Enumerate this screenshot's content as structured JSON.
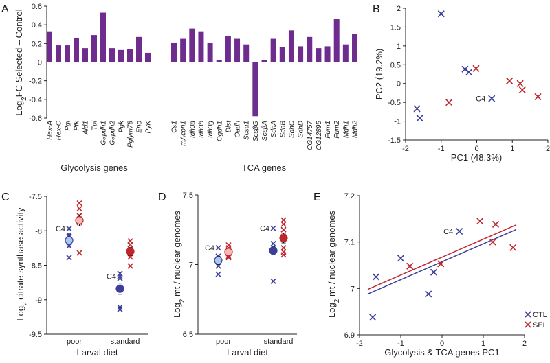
{
  "colors": {
    "bar": "#6f2c8f",
    "ctl": "#3b3f9a",
    "sel": "#c0272d",
    "ctl_light": "#a9c9ec",
    "sel_light": "#f6b9b9",
    "axis": "#222222"
  },
  "chart_data": [
    {
      "id": "A",
      "type": "bar",
      "letter": "A",
      "ylabel": {
        "pre": "Log",
        "sub": "2",
        "post": "FC Selected – Control"
      },
      "ylim": [
        -0.6,
        0.6
      ],
      "yticks": [
        -0.6,
        -0.4,
        -0.2,
        0,
        0.2,
        0.4,
        0.6
      ],
      "groups": [
        {
          "label": "Glycolysis genes",
          "categories": [
            "Hex-A",
            "Hex-C",
            "Pgi",
            "Pfk",
            "Ald1",
            "Tpi",
            "Gapdh1",
            "Gapdh2",
            "Pgk",
            "Pglym78",
            "Eno",
            "PyK"
          ],
          "values": [
            0.33,
            0.18,
            0.18,
            0.26,
            0.15,
            0.29,
            0.53,
            0.15,
            0.13,
            0.14,
            0.27,
            0.1
          ]
        },
        {
          "label": "TCA genes",
          "categories": [
            "Cs1",
            "mAcon1",
            "Idh3a",
            "Idh3b",
            "Idh3g",
            "Ogdh1",
            "Dlst",
            "Oadh",
            "Scsα1",
            "ScsβG",
            "ScsβA",
            "SdhA",
            "SdhB",
            "SdhC",
            "SdhD",
            "CG14757",
            "CG12895",
            "Fum1",
            "Fum2",
            "Mdh1",
            "Mdh2"
          ],
          "values": [
            0.21,
            0.25,
            0.36,
            0.33,
            0.21,
            0.02,
            0.28,
            0.25,
            0.19,
            -0.58,
            0.02,
            0.25,
            0.16,
            0.34,
            0.17,
            0.27,
            0.15,
            0.17,
            0.46,
            0.19,
            0.3
          ]
        }
      ]
    },
    {
      "id": "B",
      "type": "scatter",
      "letter": "B",
      "xlabel": "PC1 (48.3%)",
      "ylabel": "PC2 (19.2%)",
      "xlim": [
        -2,
        2
      ],
      "ylim": [
        -1.5,
        2
      ],
      "xticks": [
        -2,
        -1,
        0,
        1,
        2
      ],
      "yticks": [
        -1.5,
        -1,
        -0.5,
        0,
        0.5,
        1,
        1.5,
        2
      ],
      "series": [
        {
          "name": "CTL",
          "points": [
            [
              -1.0,
              1.85
            ],
            [
              -0.33,
              0.38
            ],
            [
              -0.22,
              0.3
            ],
            [
              0.42,
              -0.4
            ],
            [
              -1.68,
              -0.67
            ],
            [
              -1.6,
              -0.92
            ]
          ]
        },
        {
          "name": "SEL",
          "points": [
            [
              -0.02,
              0.4
            ],
            [
              -0.78,
              -0.5
            ],
            [
              0.92,
              0.07
            ],
            [
              1.22,
              0.0
            ],
            [
              1.28,
              -0.17
            ],
            [
              1.72,
              -0.35
            ]
          ]
        }
      ],
      "annotations": [
        {
          "text": "C4",
          "x": 0.42,
          "y": -0.4
        }
      ]
    },
    {
      "id": "C",
      "type": "scatter",
      "letter": "C",
      "xlabel": "Larval diet",
      "ylabel": {
        "pre": "Log",
        "sub": "2",
        "post": " citrate synthase activity"
      },
      "categories": [
        "poor",
        "standard"
      ],
      "ylim": [
        -9.5,
        -7.5
      ],
      "yticks": [
        -9.5,
        -9,
        -8.5,
        -8,
        -7.5
      ],
      "series": [
        {
          "name": "CTL",
          "values": [
            [
              -7.97,
              -8.06,
              -8.08,
              -8.13,
              -8.17,
              -8.22,
              -8.39
            ],
            [
              -8.62,
              -8.66,
              -8.69,
              -9.11,
              -9.14
            ]
          ],
          "means": [
            -8.14,
            -8.84
          ],
          "se": [
            0.04,
            0.08
          ]
        },
        {
          "name": "SEL",
          "values": [
            [
              -7.6,
              -7.68,
              -7.78,
              -7.83,
              -7.88,
              -8.32
            ],
            [
              -8.15,
              -8.2,
              -8.26,
              -8.33,
              -8.38,
              -8.51
            ]
          ],
          "means": [
            -7.85,
            -8.3
          ],
          "se": [
            0.08,
            0.06
          ]
        }
      ],
      "annotations": [
        {
          "text": "C4",
          "category": "poor",
          "y": -7.97
        },
        {
          "text": "C4",
          "category": "standard",
          "y": -8.66
        }
      ]
    },
    {
      "id": "D",
      "type": "scatter",
      "letter": "D",
      "xlabel": "Larval diet",
      "ylabel": {
        "pre": "Log",
        "sub": "2",
        "post": " mt / nuclear genomes"
      },
      "categories": [
        "poor",
        "standard"
      ],
      "ylim": [
        6.5,
        7.5
      ],
      "yticks": [
        6.5,
        7,
        7.5
      ],
      "series": [
        {
          "name": "CTL",
          "values": [
            [
              7.12,
              7.06,
              7.03,
              6.99,
              6.93
            ],
            [
              7.26,
              7.15,
              7.1,
              6.88
            ]
          ],
          "means": [
            7.03,
            7.1
          ],
          "se": [
            0.03,
            0.03
          ]
        },
        {
          "name": "SEL",
          "values": [
            [
              7.14,
              7.12,
              7.08,
              7.06,
              7.05
            ],
            [
              7.32,
              7.29,
              7.25,
              7.2,
              7.12,
              7.09,
              7.07
            ]
          ],
          "means": [
            7.09,
            7.19
          ],
          "se": [
            0.02,
            0.035
          ]
        }
      ],
      "annotations": [
        {
          "text": "C4",
          "category": "poor",
          "y": 7.12
        },
        {
          "text": "C4",
          "category": "standard",
          "y": 7.26
        }
      ]
    },
    {
      "id": "E",
      "type": "scatter",
      "letter": "E",
      "xlabel": "Glycolysis & TCA genes PC1",
      "ylabel": {
        "pre": "Log",
        "sub": "2",
        "post": " mt / nuclear  genomes"
      },
      "xlim": [
        -2,
        2
      ],
      "ylim": [
        6.9,
        7.2
      ],
      "xticks": [
        -2,
        -1,
        0,
        1,
        2
      ],
      "yticks": [
        6.9,
        7,
        7.1,
        7.2
      ],
      "series": [
        {
          "name": "CTL",
          "points": [
            [
              -1.68,
              6.938
            ],
            [
              -1.6,
              7.025
            ],
            [
              -1.0,
              7.065
            ],
            [
              -0.33,
              6.988
            ],
            [
              -0.2,
              7.035
            ],
            [
              0.42,
              7.123
            ]
          ],
          "fit": [
            [
              -1.8,
              6.988
            ],
            [
              1.8,
              7.127
            ]
          ]
        },
        {
          "name": "SEL",
          "points": [
            [
              -0.78,
              7.048
            ],
            [
              -0.03,
              7.053
            ],
            [
              0.92,
              7.145
            ],
            [
              1.3,
              7.138
            ],
            [
              1.23,
              7.1
            ],
            [
              1.72,
              7.088
            ]
          ],
          "fit": [
            [
              -1.8,
              6.998
            ],
            [
              1.8,
              7.137
            ]
          ]
        }
      ],
      "legend": {
        "position": "bottom-right",
        "entries": [
          "CTL",
          "SEL"
        ]
      },
      "annotations": [
        {
          "text": "C4",
          "x": 0.42,
          "y": 7.123
        }
      ]
    }
  ]
}
